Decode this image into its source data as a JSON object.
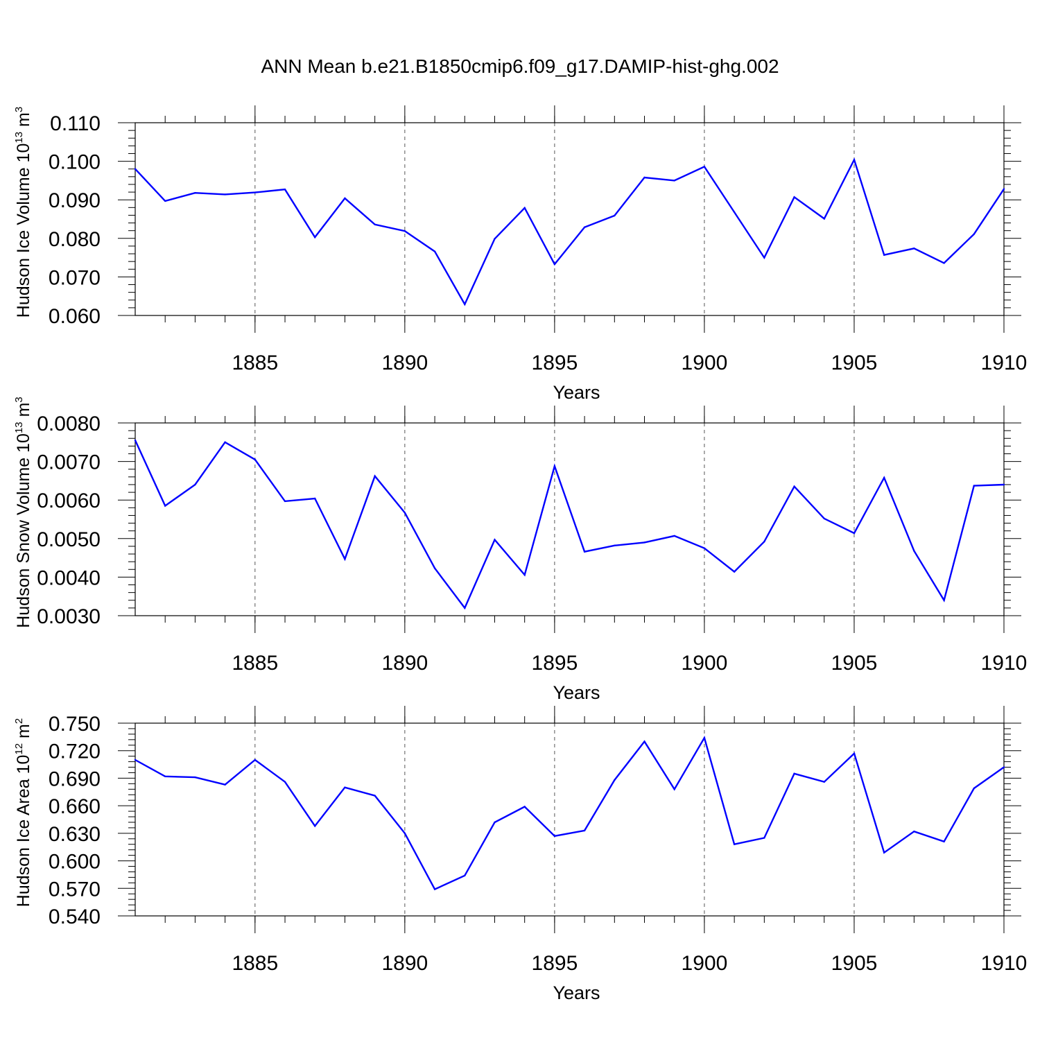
{
  "title": "ANN Mean b.e21.B1850cmip6.f09_g17.DAMIP-hist-ghg.002",
  "colors": {
    "line": "#0000ff",
    "axis": "#000000",
    "grid": "#555555"
  },
  "chart_data": [
    {
      "type": "line",
      "ylabel": "Hudson Ice Volume",
      "yunit_base": "10",
      "yunit_exp": "13",
      "yunit_symbol": "m",
      "yunit_power": "3",
      "xlabel": "Years",
      "xlim": [
        1881,
        1910
      ],
      "ylim": [
        0.06,
        0.11
      ],
      "xticks": [
        1885,
        1890,
        1895,
        1900,
        1905,
        1910
      ],
      "yticks": [
        "0.060",
        "0.070",
        "0.080",
        "0.090",
        "0.100",
        "0.110"
      ],
      "grid": "vertical dashed at x ticks",
      "x": [
        1881,
        1882,
        1883,
        1884,
        1885,
        1886,
        1887,
        1888,
        1889,
        1890,
        1891,
        1892,
        1893,
        1894,
        1895,
        1896,
        1897,
        1898,
        1899,
        1900,
        1901,
        1902,
        1903,
        1904,
        1905,
        1906,
        1907,
        1908,
        1909,
        1910
      ],
      "values": [
        0.098,
        0.0897,
        0.0918,
        0.0914,
        0.0919,
        0.0927,
        0.0803,
        0.0904,
        0.0836,
        0.0819,
        0.0766,
        0.0629,
        0.0799,
        0.0879,
        0.0733,
        0.0829,
        0.0859,
        0.0958,
        0.095,
        0.0986,
        0.0868,
        0.075,
        0.0907,
        0.0851,
        0.1004,
        0.0757,
        0.0774,
        0.0736,
        0.0811,
        0.0928
      ]
    },
    {
      "type": "line",
      "ylabel": "Hudson Snow Volume",
      "yunit_base": "10",
      "yunit_exp": "13",
      "yunit_symbol": "m",
      "yunit_power": "3",
      "xlabel": "Years",
      "xlim": [
        1881,
        1910
      ],
      "ylim": [
        0.003,
        0.008
      ],
      "xticks": [
        1885,
        1890,
        1895,
        1900,
        1905,
        1910
      ],
      "yticks": [
        "0.0030",
        "0.0040",
        "0.0050",
        "0.0060",
        "0.0070",
        "0.0080"
      ],
      "grid": "vertical dashed at x ticks",
      "x": [
        1881,
        1882,
        1883,
        1884,
        1885,
        1886,
        1887,
        1888,
        1889,
        1890,
        1891,
        1892,
        1893,
        1894,
        1895,
        1896,
        1897,
        1898,
        1899,
        1900,
        1901,
        1902,
        1903,
        1904,
        1905,
        1906,
        1907,
        1908,
        1909,
        1910
      ],
      "values": [
        0.00755,
        0.00585,
        0.0064,
        0.0075,
        0.00705,
        0.00597,
        0.00604,
        0.00447,
        0.00662,
        0.00567,
        0.00423,
        0.0032,
        0.00497,
        0.00406,
        0.00688,
        0.00466,
        0.00482,
        0.0049,
        0.00507,
        0.00475,
        0.00414,
        0.00492,
        0.00635,
        0.00552,
        0.00514,
        0.00658,
        0.00468,
        0.0034,
        0.00637,
        0.0064
      ]
    },
    {
      "type": "line",
      "ylabel": "Hudson Ice Area",
      "yunit_base": "10",
      "yunit_exp": "12",
      "yunit_symbol": "m",
      "yunit_power": "2",
      "xlabel": "Years",
      "xlim": [
        1881,
        1910
      ],
      "ylim": [
        0.54,
        0.75
      ],
      "xticks": [
        1885,
        1890,
        1895,
        1900,
        1905,
        1910
      ],
      "yticks": [
        "0.540",
        "0.570",
        "0.600",
        "0.630",
        "0.660",
        "0.690",
        "0.720",
        "0.750"
      ],
      "grid": "vertical dashed at x ticks",
      "x": [
        1881,
        1882,
        1883,
        1884,
        1885,
        1886,
        1887,
        1888,
        1889,
        1890,
        1891,
        1892,
        1893,
        1894,
        1895,
        1896,
        1897,
        1898,
        1899,
        1900,
        1901,
        1902,
        1903,
        1904,
        1905,
        1906,
        1907,
        1908,
        1909,
        1910
      ],
      "values": [
        0.71,
        0.692,
        0.691,
        0.683,
        0.71,
        0.686,
        0.638,
        0.68,
        0.671,
        0.63,
        0.569,
        0.584,
        0.642,
        0.659,
        0.627,
        0.633,
        0.688,
        0.73,
        0.678,
        0.734,
        0.618,
        0.625,
        0.695,
        0.686,
        0.717,
        0.609,
        0.632,
        0.621,
        0.679,
        0.702
      ]
    }
  ]
}
